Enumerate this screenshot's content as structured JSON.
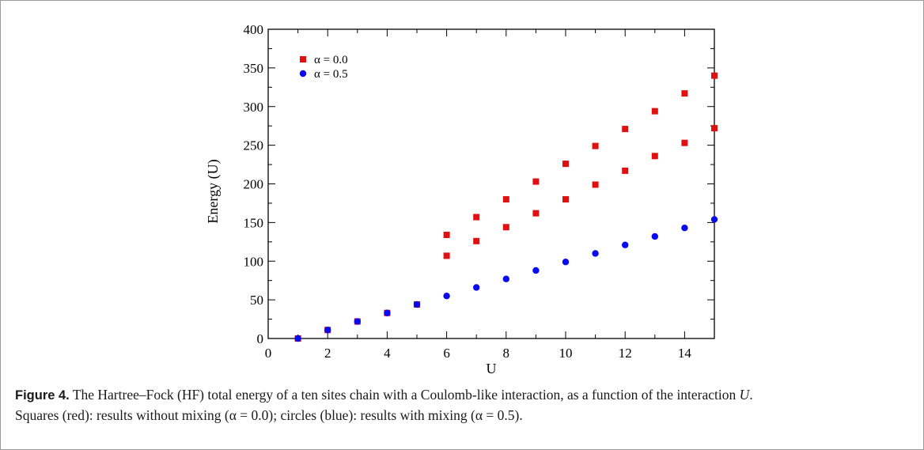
{
  "chart_data": {
    "type": "scatter",
    "xlabel": "U",
    "ylabel": "Energy (U)",
    "xlim": [
      0,
      15
    ],
    "ylim": [
      0,
      400
    ],
    "x_ticks": [
      0,
      2,
      4,
      6,
      8,
      10,
      12,
      14
    ],
    "y_ticks": [
      0,
      50,
      100,
      150,
      200,
      250,
      300,
      350,
      400
    ],
    "grid": false,
    "legend_position": "top-left",
    "series": [
      {
        "name": "α = 0.0",
        "marker": "square",
        "color": "#e01010",
        "points": [
          [
            1,
            0
          ],
          [
            2,
            11
          ],
          [
            3,
            22
          ],
          [
            4,
            33
          ],
          [
            5,
            44
          ],
          [
            6,
            107
          ],
          [
            6,
            134
          ],
          [
            7,
            126
          ],
          [
            7,
            157
          ],
          [
            8,
            144
          ],
          [
            8,
            180
          ],
          [
            9,
            162
          ],
          [
            9,
            203
          ],
          [
            10,
            180
          ],
          [
            10,
            226
          ],
          [
            11,
            199
          ],
          [
            11,
            249
          ],
          [
            12,
            217
          ],
          [
            12,
            271
          ],
          [
            13,
            236
          ],
          [
            13,
            294
          ],
          [
            14,
            253
          ],
          [
            14,
            317
          ],
          [
            15,
            272
          ],
          [
            15,
            340
          ]
        ]
      },
      {
        "name": "α = 0.5",
        "marker": "circle",
        "color": "#0a0aee",
        "points": [
          [
            1,
            0
          ],
          [
            2,
            11
          ],
          [
            3,
            22
          ],
          [
            4,
            33
          ],
          [
            5,
            44
          ],
          [
            6,
            55
          ],
          [
            7,
            66
          ],
          [
            8,
            77
          ],
          [
            9,
            88
          ],
          [
            10,
            99
          ],
          [
            11,
            110
          ],
          [
            12,
            121
          ],
          [
            13,
            132
          ],
          [
            14,
            143
          ],
          [
            15,
            154
          ]
        ]
      }
    ]
  },
  "caption": {
    "label": "Figure 4.",
    "text_a": " The Hartree–Fock (HF) total energy of a ten sites chain with a Coulomb-like interaction, as a function of the interaction ",
    "var": "U",
    "text_b": ".",
    "text_c": "Squares (red): results without mixing (α = 0.0); circles (blue): results with mixing (α = 0.5)."
  }
}
